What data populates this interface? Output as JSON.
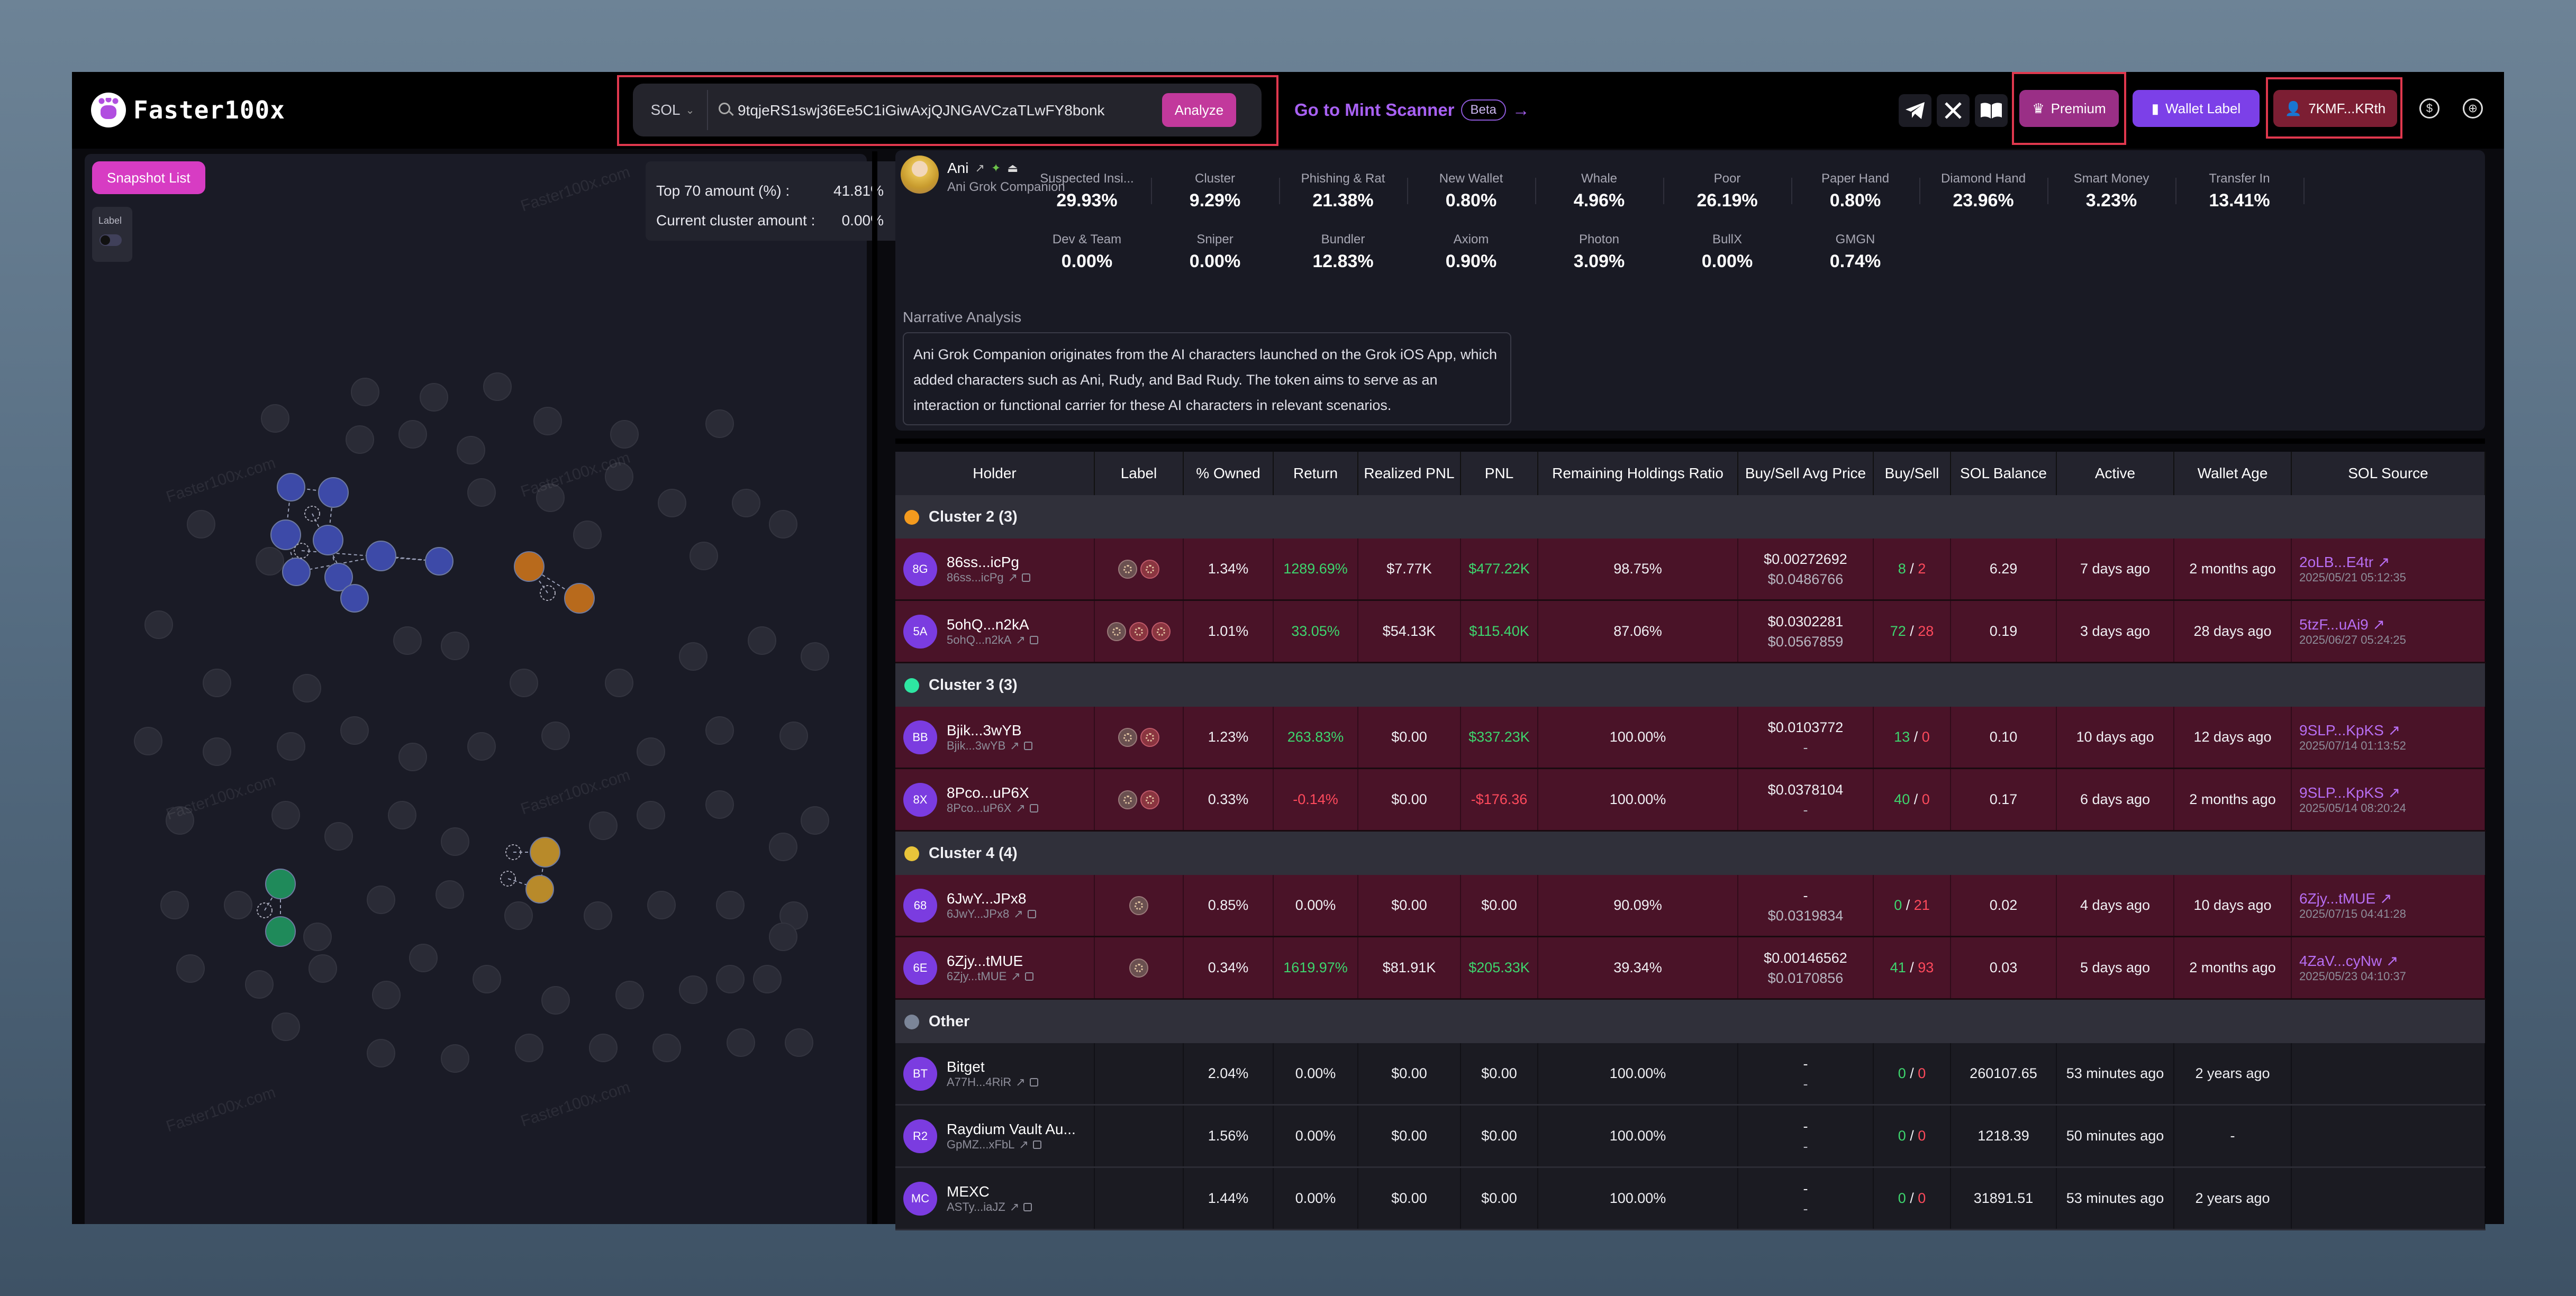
{
  "topbar": {
    "logo_text": "Faster100x",
    "chain": "SOL",
    "search_value": "9tqjeRS1swj36Ee5C1iGiwAxjQJNGAVCzaTLwFY8bonk",
    "analyze_label": "Analyze",
    "mint_scanner_label": "Go to Mint Scanner",
    "beta_label": "Beta",
    "premium_label": "Premium",
    "wallet_label_btn": "Wallet Label",
    "wallet_short": "7KMF...KRth"
  },
  "graph_panel": {
    "snapshot_label": "Snapshot List",
    "label_toggle": "Label",
    "top70_label": "Top 70 amount (%) :",
    "top70_value": "41.81%",
    "cluster_amount_label": "Current cluster amount :",
    "cluster_amount_value": "0.00%",
    "watermark": "Faster100x.com",
    "cluster_colors": {
      "cluster2": "#3d4aa8",
      "cluster3": "#1f8a5a",
      "cluster4": "#b88a2a",
      "cluster1": "#b86a1c"
    }
  },
  "token": {
    "name": "Ani",
    "full_name": "Ani Grok Companion",
    "metrics_row1": [
      {
        "label": "Suspected Insi...",
        "value": "29.93%"
      },
      {
        "label": "Cluster",
        "value": "9.29%"
      },
      {
        "label": "Phishing & Rat",
        "value": "21.38%"
      },
      {
        "label": "New Wallet",
        "value": "0.80%"
      },
      {
        "label": "Whale",
        "value": "4.96%"
      },
      {
        "label": "Poor",
        "value": "26.19%"
      },
      {
        "label": "Paper Hand",
        "value": "0.80%"
      },
      {
        "label": "Diamond Hand",
        "value": "23.96%"
      },
      {
        "label": "Smart Money",
        "value": "3.23%"
      },
      {
        "label": "Transfer In",
        "value": "13.41%"
      }
    ],
    "metrics_row2": [
      {
        "label": "Dev & Team",
        "value": "0.00%"
      },
      {
        "label": "Sniper",
        "value": "0.00%"
      },
      {
        "label": "Bundler",
        "value": "12.83%"
      },
      {
        "label": "Axiom",
        "value": "0.90%"
      },
      {
        "label": "Photon",
        "value": "3.09%"
      },
      {
        "label": "BullX",
        "value": "0.00%"
      },
      {
        "label": "GMGN",
        "value": "0.74%"
      }
    ],
    "narrative_title": "Narrative Analysis",
    "narrative": "Ani Grok Companion originates from the AI characters launched on the Grok iOS App, which added characters such as Ani, Rudy, and Bad Rudy. The token aims to serve as an interaction or functional carrier for these AI characters in relevant scenarios."
  },
  "table": {
    "headers": [
      "Holder",
      "Label",
      "% Owned",
      "Return",
      "Realized PNL",
      "PNL",
      "Remaining Holdings Ratio",
      "Buy/Sell Avg Price",
      "Buy/Sell",
      "SOL Balance",
      "Active",
      "Wallet Age",
      "SOL Source"
    ],
    "groups": [
      {
        "title": "Cluster 2 (3)",
        "color": "#f39a1e",
        "rows": [
          {
            "initials": "8G",
            "name": "86ss...icPg",
            "addr": "86ss...icPg",
            "tags": [
              "gold",
              "red"
            ],
            "owned": "1.34%",
            "return": "1289.69%",
            "return_cls": "green",
            "realized": "$7.77K",
            "pnl": "$477.22K",
            "pnl_cls": "green",
            "remaining": "98.75%",
            "buy_price": "$0.00272692",
            "sell_price": "$0.0486766",
            "buys": "8",
            "sells": "2",
            "sol": "6.29",
            "active": "7 days ago",
            "age": "2 months ago",
            "src": "2oLB...E4tr",
            "src_date": "2025/05/21 05:12:35"
          },
          {
            "initials": "5A",
            "name": "5ohQ...n2kA",
            "addr": "5ohQ...n2kA",
            "tags": [
              "gold",
              "red",
              "red"
            ],
            "owned": "1.01%",
            "return": "33.05%",
            "return_cls": "green",
            "realized": "$54.13K",
            "pnl": "$115.40K",
            "pnl_cls": "green",
            "remaining": "87.06%",
            "buy_price": "$0.0302281",
            "sell_price": "$0.0567859",
            "buys": "72",
            "sells": "28",
            "sol": "0.19",
            "active": "3 days ago",
            "age": "28 days ago",
            "src": "5tzF...uAi9",
            "src_date": "2025/06/27 05:24:25"
          }
        ]
      },
      {
        "title": "Cluster 3 (3)",
        "color": "#2ee6a2",
        "rows": [
          {
            "initials": "BB",
            "name": "Bjik...3wYB",
            "addr": "Bjik...3wYB",
            "tags": [
              "gold",
              "red"
            ],
            "owned": "1.23%",
            "return": "263.83%",
            "return_cls": "green",
            "realized": "$0.00",
            "pnl": "$337.23K",
            "pnl_cls": "green",
            "remaining": "100.00%",
            "buy_price": "$0.0103772",
            "sell_price": "-",
            "buys": "13",
            "sells": "0",
            "sol": "0.10",
            "active": "10 days ago",
            "age": "12 days ago",
            "src": "9SLP...KpKS",
            "src_date": "2025/07/14 01:13:52"
          },
          {
            "initials": "8X",
            "name": "8Pco...uP6X",
            "addr": "8Pco...uP6X",
            "tags": [
              "gold",
              "red"
            ],
            "owned": "0.33%",
            "return": "-0.14%",
            "return_cls": "red",
            "realized": "$0.00",
            "pnl": "-$176.36",
            "pnl_cls": "red",
            "remaining": "100.00%",
            "buy_price": "$0.0378104",
            "sell_price": "-",
            "buys": "40",
            "sells": "0",
            "sol": "0.17",
            "active": "6 days ago",
            "age": "2 months ago",
            "src": "9SLP...KpKS",
            "src_date": "2025/05/14 08:20:24"
          }
        ]
      },
      {
        "title": "Cluster 4 (4)",
        "color": "#e8c43a",
        "rows": [
          {
            "initials": "68",
            "name": "6JwY...JPx8",
            "addr": "6JwY...JPx8",
            "tags": [
              "gold"
            ],
            "owned": "0.85%",
            "return": "0.00%",
            "return_cls": "",
            "realized": "$0.00",
            "pnl": "$0.00",
            "pnl_cls": "",
            "remaining": "90.09%",
            "buy_price": "-",
            "sell_price": "$0.0319834",
            "buys": "0",
            "sells": "21",
            "sol": "0.02",
            "active": "4 days ago",
            "age": "10 days ago",
            "src": "6Zjy...tMUE",
            "src_date": "2025/07/15 04:41:28"
          },
          {
            "initials": "6E",
            "name": "6Zjy...tMUE",
            "addr": "6Zjy...tMUE",
            "tags": [
              "gold"
            ],
            "owned": "0.34%",
            "return": "1619.97%",
            "return_cls": "green",
            "realized": "$81.91K",
            "pnl": "$205.33K",
            "pnl_cls": "green",
            "remaining": "39.34%",
            "buy_price": "$0.00146562",
            "sell_price": "$0.0170856",
            "buys": "41",
            "sells": "93",
            "sol": "0.03",
            "active": "5 days ago",
            "age": "2 months ago",
            "src": "4ZaV...cyNw",
            "src_date": "2025/05/23 04:10:37"
          }
        ]
      },
      {
        "title": "Other",
        "color": "#7b8598",
        "rows": [
          {
            "initials": "BT",
            "name": "Bitget",
            "addr": "A77H...4RiR",
            "tags": [],
            "owned": "2.04%",
            "return": "0.00%",
            "return_cls": "",
            "realized": "$0.00",
            "pnl": "$0.00",
            "pnl_cls": "",
            "remaining": "100.00%",
            "buy_price": "-",
            "sell_price": "-",
            "buys": "0",
            "sells": "0",
            "sol": "260107.65",
            "active": "53 minutes ago",
            "age": "2 years ago",
            "src": "",
            "src_date": ""
          },
          {
            "initials": "R2",
            "name": "Raydium Vault Au...",
            "addr": "GpMZ...xFbL",
            "tags": [],
            "owned": "1.56%",
            "return": "0.00%",
            "return_cls": "",
            "realized": "$0.00",
            "pnl": "$0.00",
            "pnl_cls": "",
            "remaining": "100.00%",
            "buy_price": "-",
            "sell_price": "-",
            "buys": "0",
            "sells": "0",
            "sol": "1218.39",
            "active": "50 minutes ago",
            "age": "-",
            "src": "",
            "src_date": ""
          },
          {
            "initials": "MC",
            "name": "MEXC",
            "addr": "ASTy...iaJZ",
            "tags": [],
            "owned": "1.44%",
            "return": "0.00%",
            "return_cls": "",
            "realized": "$0.00",
            "pnl": "$0.00",
            "pnl_cls": "",
            "remaining": "100.00%",
            "buy_price": "-",
            "sell_price": "-",
            "buys": "0",
            "sells": "0",
            "sol": "31891.51",
            "active": "53 minutes ago",
            "age": "2 years ago",
            "src": "",
            "src_date": ""
          }
        ]
      }
    ]
  }
}
